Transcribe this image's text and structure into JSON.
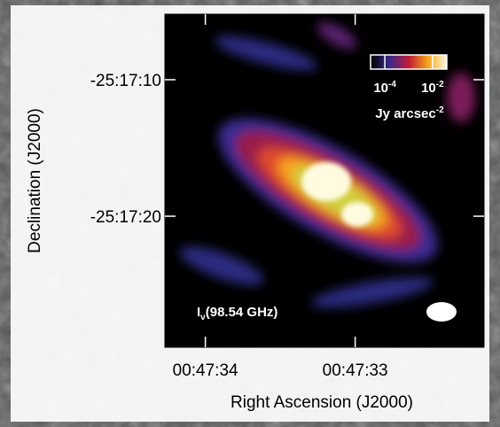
{
  "chart_data": {
    "type": "image",
    "xlabel": "Right Ascension (J2000)",
    "ylabel": "Declination (J2000)",
    "xlim": [
      34.27,
      32.14
    ],
    "xticks": [
      {
        "value": 34,
        "label": "00:47:34"
      },
      {
        "value": 33,
        "label": "00:47:33"
      }
    ],
    "ylim": [
      5.2,
      29.6
    ],
    "yticks": [
      {
        "value": 10,
        "label": "-25:17:10"
      },
      {
        "value": 20,
        "label": "-25:17:20"
      }
    ],
    "colorbar": {
      "ticks": [
        {
          "value": -4,
          "base": "10",
          "exponent": "-4"
        },
        {
          "value": -2,
          "base": "10",
          "exponent": "-2"
        }
      ],
      "lim": [
        -4.6,
        -1.4
      ],
      "unit": {
        "text": "Jy arcsec",
        "exponent": "-2"
      }
    },
    "annotation": {
      "symbol": "I",
      "subscript": "ν",
      "text": "(98.54 GHz)"
    }
  }
}
